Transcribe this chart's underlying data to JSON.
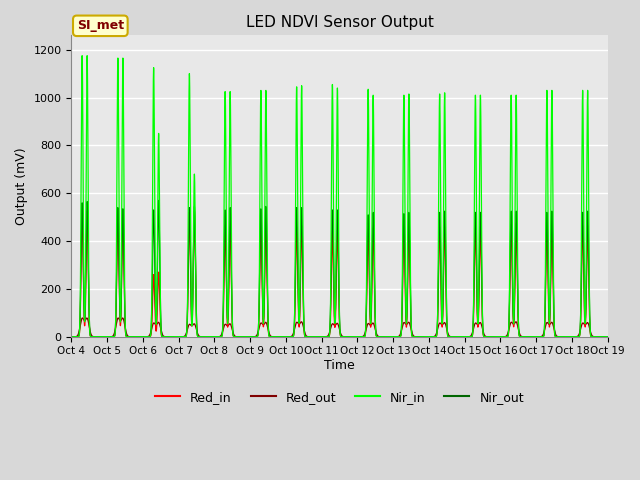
{
  "title": "LED NDVI Sensor Output",
  "xlabel": "Time",
  "ylabel": "Output (mV)",
  "ylim": [
    0,
    1260
  ],
  "yticks": [
    0,
    200,
    400,
    600,
    800,
    1000,
    1200
  ],
  "background_color": "#d8d8d8",
  "plot_bg_color": "#e8e8e8",
  "legend_label": "SI_met",
  "legend_bg": "#ffffcc",
  "legend_border": "#ccaa00",
  "num_cycles": 15,
  "start_day": 4,
  "colors": {
    "Red_in": "#ff0000",
    "Red_out": "#800000",
    "Nir_in": "#00ff00",
    "Nir_out": "#006600"
  },
  "tick_labels": [
    "Oct 4",
    "Oct 5",
    "Oct 6",
    "Oct 7",
    "Oct 8",
    "Oct 9",
    "Oct 10",
    "Oct 11",
    "Oct 12",
    "Oct 13",
    "Oct 14",
    "Oct 15",
    "Oct 16",
    "Oct 17",
    "Oct 18",
    "Oct 19"
  ],
  "peaks_nir_in": [
    1175,
    1165,
    1125,
    1100,
    1025,
    1030,
    1045,
    1055,
    1035,
    1010,
    1015,
    1010,
    1010,
    1030,
    1030
  ],
  "peaks_nir_in2": [
    1175,
    1165,
    850,
    680,
    1025,
    1030,
    1050,
    1040,
    1010,
    1015,
    1020,
    1010,
    1010,
    1030,
    1030
  ],
  "peaks_nir_out": [
    560,
    540,
    530,
    540,
    530,
    535,
    540,
    530,
    510,
    515,
    520,
    520,
    525,
    520,
    520
  ],
  "peaks_nir_out2": [
    565,
    535,
    570,
    545,
    540,
    545,
    540,
    530,
    520,
    520,
    525,
    520,
    525,
    525,
    525
  ],
  "peaks_red_in": [
    520,
    530,
    260,
    520,
    455,
    470,
    460,
    440,
    450,
    455,
    460,
    455,
    470,
    460,
    465
  ],
  "peaks_red_in2": [
    525,
    525,
    270,
    525,
    460,
    475,
    465,
    445,
    455,
    460,
    460,
    460,
    475,
    465,
    465
  ],
  "peaks_red_out": [
    75,
    75,
    55,
    50,
    50,
    55,
    58,
    52,
    53,
    57,
    55,
    55,
    58,
    57,
    55
  ],
  "peaks_red_out2": [
    75,
    75,
    58,
    52,
    52,
    58,
    60,
    54,
    55,
    58,
    57,
    57,
    60,
    58,
    57
  ]
}
